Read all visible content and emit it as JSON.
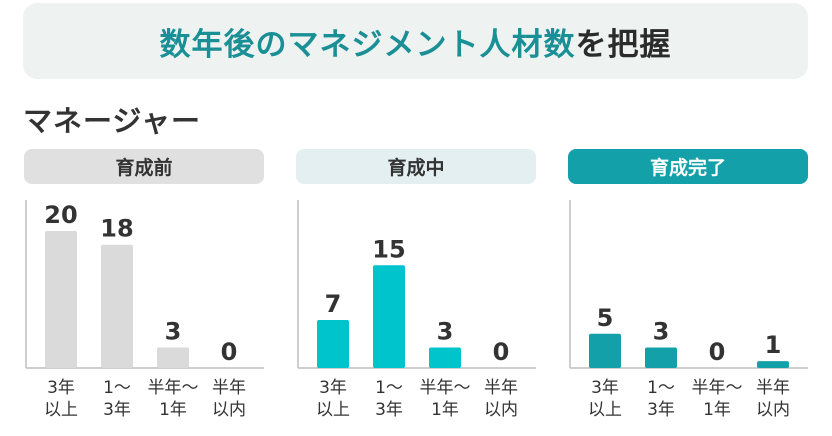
{
  "banner": {
    "title_highlight": "数年後のマネジメント人材数",
    "title_rest": "を把握"
  },
  "section": {
    "title": "マネージャー"
  },
  "colors": {
    "banner_bg": "#eef3f2",
    "accent": "#1a9096",
    "bar_gray": "#dadada",
    "bar_cyan": "#00c4cc",
    "bar_teal": "#14a0a8",
    "axis": "#bdbdbd",
    "text": "#333333"
  },
  "chart_data": [
    {
      "type": "bar",
      "title": "育成前",
      "categories": [
        "3年\n以上",
        "1〜\n3年",
        "半年〜\n1年",
        "半年\n以内"
      ],
      "values": [
        20,
        18,
        3,
        0
      ],
      "ylim": [
        0,
        20
      ],
      "color": "#dadada",
      "header_bg": "#e0e0e0",
      "header_fg": "#333333"
    },
    {
      "type": "bar",
      "title": "育成中",
      "categories": [
        "3年\n以上",
        "1〜\n3年",
        "半年〜\n1年",
        "半年\n以内"
      ],
      "values": [
        7,
        15,
        3,
        0
      ],
      "ylim": [
        0,
        20
      ],
      "color": "#00c4cc",
      "header_bg": "#e3eff1",
      "header_fg": "#333333"
    },
    {
      "type": "bar",
      "title": "育成完了",
      "categories": [
        "3年\n以上",
        "1〜\n3年",
        "半年〜\n1年",
        "半年\n以内"
      ],
      "values": [
        5,
        3,
        0,
        1
      ],
      "ylim": [
        0,
        20
      ],
      "color": "#14a0a8",
      "header_bg": "#14a0a8",
      "header_fg": "#ffffff"
    }
  ]
}
